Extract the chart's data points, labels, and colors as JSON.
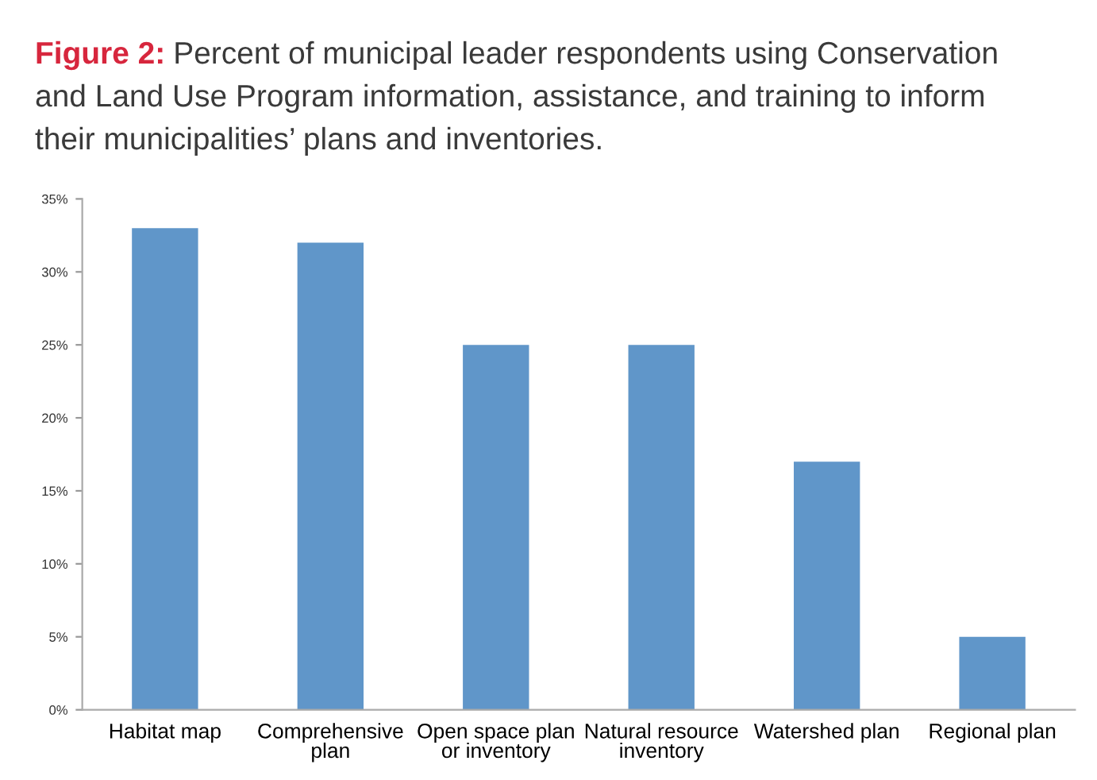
{
  "chart_data": {
    "type": "bar",
    "title": "Figure 2:",
    "subtitle": "Percent of municipal leader respondents using Conservation\nand Land Use Program information, assistance, and training to inform\ntheir municipalities’ plans and inventories.",
    "categories": [
      "Habitat map",
      "Comprehensive\nplan",
      "Open space plan\nor inventory",
      "Natural resource\ninventory",
      "Watershed plan",
      "Regional plan"
    ],
    "values": [
      33,
      32,
      25,
      25,
      17,
      5
    ],
    "color": "#6096c9",
    "ylim": [
      0,
      35
    ],
    "yticks": [
      {
        "value": 0,
        "label": "0%"
      },
      {
        "value": 5,
        "label": "5%"
      },
      {
        "value": 10,
        "label": "10%"
      },
      {
        "value": 15,
        "label": "15%"
      },
      {
        "value": 20,
        "label": "20%"
      },
      {
        "value": 25,
        "label": "25%"
      },
      {
        "value": 30,
        "label": "30%"
      },
      {
        "value": 35,
        "label": "35%"
      }
    ],
    "grid": false,
    "legend": false
  }
}
